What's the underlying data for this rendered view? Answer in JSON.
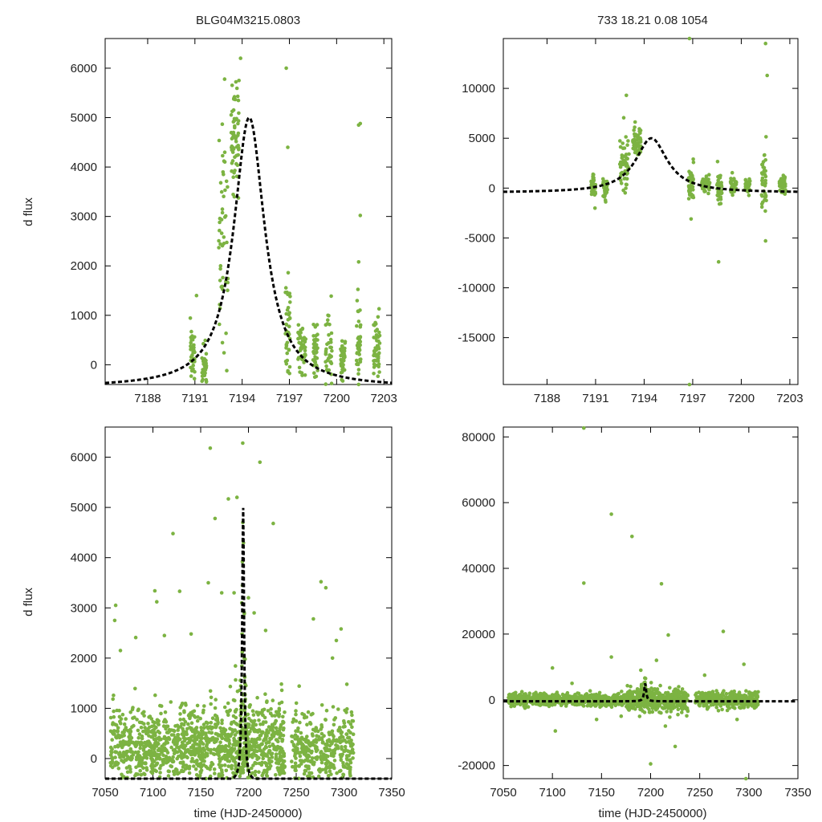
{
  "chart_data": [
    {
      "id": "top_left",
      "type": "scatter",
      "title": "BLG04M3215.0803",
      "xlabel": "",
      "ylabel": "d flux",
      "xlim": [
        7185.3,
        7203.5
      ],
      "ylim": [
        -400,
        6600
      ],
      "xticks": [
        7188,
        7191,
        7194,
        7197,
        7200,
        7203
      ],
      "yticks": [
        0,
        1000,
        2000,
        3000,
        4000,
        5000,
        6000
      ],
      "model": {
        "peak_time": 7194.45,
        "peak_flux": 5000,
        "baseline": -460,
        "width": 1.2
      },
      "point_color": "#7cb342",
      "model_color": "#000000",
      "clusters": [
        {
          "center": 7190.85,
          "spread": 0.15,
          "mean": 150,
          "sd": 280,
          "count": 40
        },
        {
          "center": 7191.6,
          "spread": 0.15,
          "mean": -100,
          "sd": 250,
          "count": 40
        },
        {
          "center": 7192.8,
          "spread": 0.3,
          "mean": 2500,
          "sd": 1400,
          "count": 50
        },
        {
          "center": 7193.55,
          "spread": 0.25,
          "mean": 4600,
          "sd": 600,
          "count": 60
        },
        {
          "center": 7196.9,
          "spread": 0.15,
          "mean": 700,
          "sd": 600,
          "count": 40
        },
        {
          "center": 7197.8,
          "spread": 0.25,
          "mean": 300,
          "sd": 300,
          "count": 50
        },
        {
          "center": 7198.65,
          "spread": 0.15,
          "mean": 350,
          "sd": 350,
          "count": 40
        },
        {
          "center": 7199.5,
          "spread": 0.2,
          "mean": 300,
          "sd": 400,
          "count": 40
        },
        {
          "center": 7200.4,
          "spread": 0.15,
          "mean": 100,
          "sd": 280,
          "count": 40
        },
        {
          "center": 7201.4,
          "spread": 0.15,
          "mean": 350,
          "sd": 500,
          "count": 40
        },
        {
          "center": 7202.55,
          "spread": 0.2,
          "mean": 300,
          "sd": 300,
          "count": 50
        }
      ],
      "outliers": [
        [
          7193.9,
          6200
        ],
        [
          7193.8,
          5750
        ],
        [
          7196.8,
          6000
        ],
        [
          7196.9,
          4400
        ],
        [
          7201.5,
          4880
        ],
        [
          7201.4,
          4850
        ],
        [
          7201.5,
          3020
        ],
        [
          7201.4,
          2080
        ],
        [
          7191.1,
          1400
        ]
      ]
    },
    {
      "id": "top_right",
      "type": "scatter",
      "title": "733  18.21  0.08  1054",
      "xlabel": "",
      "ylabel": "",
      "xlim": [
        7185.3,
        7203.5
      ],
      "ylim": [
        -19700,
        15000
      ],
      "xticks": [
        7188,
        7191,
        7194,
        7197,
        7200,
        7203
      ],
      "yticks": [
        -15000,
        -10000,
        -5000,
        0,
        5000,
        10000
      ],
      "model": {
        "peak_time": 7194.45,
        "peak_flux": 5000,
        "baseline": -460,
        "width": 1.2
      },
      "point_color": "#7cb342",
      "model_color": "#000000",
      "clusters": [
        {
          "center": 7190.85,
          "spread": 0.15,
          "mean": 0,
          "sd": 600,
          "count": 40
        },
        {
          "center": 7191.6,
          "spread": 0.15,
          "mean": -100,
          "sd": 500,
          "count": 40
        },
        {
          "center": 7192.8,
          "spread": 0.3,
          "mean": 2500,
          "sd": 1800,
          "count": 50
        },
        {
          "center": 7193.55,
          "spread": 0.25,
          "mean": 4600,
          "sd": 800,
          "count": 60
        },
        {
          "center": 7196.9,
          "spread": 0.15,
          "mean": 600,
          "sd": 900,
          "count": 40
        },
        {
          "center": 7197.8,
          "spread": 0.25,
          "mean": 300,
          "sd": 400,
          "count": 50
        },
        {
          "center": 7198.65,
          "spread": 0.15,
          "mean": 200,
          "sd": 900,
          "count": 40
        },
        {
          "center": 7199.5,
          "spread": 0.2,
          "mean": 300,
          "sd": 500,
          "count": 40
        },
        {
          "center": 7200.4,
          "spread": 0.15,
          "mean": 100,
          "sd": 400,
          "count": 40
        },
        {
          "center": 7201.4,
          "spread": 0.15,
          "mean": 200,
          "sd": 1600,
          "count": 40
        },
        {
          "center": 7202.55,
          "spread": 0.2,
          "mean": 300,
          "sd": 400,
          "count": 50
        }
      ],
      "outliers": [
        [
          7196.8,
          15000
        ],
        [
          7201.5,
          14500
        ],
        [
          7201.6,
          11300
        ],
        [
          7192.9,
          9300
        ],
        [
          7196.8,
          -19700
        ],
        [
          7198.6,
          -7400
        ],
        [
          7201.5,
          -5300
        ],
        [
          7196.9,
          -3100
        ]
      ]
    },
    {
      "id": "bottom_left",
      "type": "scatter",
      "title": "",
      "xlabel": "time (HJD-2450000)",
      "ylabel": "d flux",
      "xlim": [
        7050,
        7350
      ],
      "ylim": [
        -400,
        6600
      ],
      "xticks": [
        7050,
        7100,
        7150,
        7200,
        7250,
        7300,
        7350
      ],
      "yticks": [
        0,
        1000,
        2000,
        3000,
        4000,
        5000,
        6000
      ],
      "model": {
        "peak_time": 7194.45,
        "peak_flux": 5000,
        "baseline": -460,
        "width": 1.2
      },
      "point_color": "#7cb342",
      "model_color": "#000000",
      "clusters": [
        {
          "range": [
            7055,
            7175
          ],
          "mean": 250,
          "sd": 350,
          "count": 800
        },
        {
          "range": [
            7175,
            7238
          ],
          "mean": 250,
          "sd": 450,
          "count": 550
        },
        {
          "range": [
            7245,
            7310
          ],
          "mean": 180,
          "sd": 350,
          "count": 380
        }
      ],
      "outliers": [
        [
          7160,
          6180
        ],
        [
          7194,
          6280
        ],
        [
          7212,
          5900
        ],
        [
          7179,
          5170
        ],
        [
          7188,
          5200
        ],
        [
          7226,
          4680
        ],
        [
          7121,
          4480
        ],
        [
          7165,
          4780
        ],
        [
          7193,
          3100
        ],
        [
          7185,
          3300
        ],
        [
          7061,
          3050
        ],
        [
          7102,
          3340
        ],
        [
          7104,
          3120
        ],
        [
          7128,
          3330
        ],
        [
          7172,
          3300
        ],
        [
          7276,
          3520
        ],
        [
          7281,
          3400
        ],
        [
          7268,
          2780
        ],
        [
          7297,
          2580
        ],
        [
          7060,
          2750
        ],
        [
          7112,
          2450
        ],
        [
          7140,
          2480
        ],
        [
          7218,
          2550
        ],
        [
          7066,
          2150
        ],
        [
          7082,
          2410
        ],
        [
          7288,
          2000
        ],
        [
          7303,
          1480
        ],
        [
          7292,
          2350
        ],
        [
          7158,
          3500
        ],
        [
          7200,
          3200
        ],
        [
          7206,
          2900
        ]
      ]
    },
    {
      "id": "bottom_right",
      "type": "scatter",
      "title": "",
      "xlabel": "time (HJD-2450000)",
      "ylabel": "",
      "xlim": [
        7050,
        7350
      ],
      "ylim": [
        -24000,
        83000
      ],
      "xticks": [
        7050,
        7100,
        7150,
        7200,
        7250,
        7300,
        7350
      ],
      "yticks": [
        -20000,
        0,
        20000,
        40000,
        60000,
        80000
      ],
      "model": {
        "peak_time": 7194.45,
        "peak_flux": 5000,
        "baseline": -460,
        "width": 1.2
      },
      "point_color": "#7cb342",
      "model_color": "#000000",
      "clusters": [
        {
          "range": [
            7055,
            7175
          ],
          "mean": 0,
          "sd": 900,
          "count": 800
        },
        {
          "range": [
            7175,
            7238
          ],
          "mean": 0,
          "sd": 1600,
          "count": 550
        },
        {
          "range": [
            7245,
            7310
          ],
          "mean": 0,
          "sd": 1200,
          "count": 380
        }
      ],
      "outliers": [
        [
          7132,
          82700
        ],
        [
          7160,
          56500
        ],
        [
          7181,
          49700
        ],
        [
          7132,
          35500
        ],
        [
          7211,
          35300
        ],
        [
          7218,
          19700
        ],
        [
          7274,
          20800
        ],
        [
          7160,
          13000
        ],
        [
          7295,
          10800
        ],
        [
          7100,
          9700
        ],
        [
          7200,
          -19500
        ],
        [
          7225,
          -14200
        ],
        [
          7297,
          -24000
        ],
        [
          7103,
          -9500
        ],
        [
          7145,
          -6000
        ],
        [
          7190,
          9000
        ],
        [
          7206,
          12000
        ],
        [
          7215,
          -8000
        ],
        [
          7255,
          7500
        ],
        [
          7288,
          -6000
        ],
        [
          7170,
          -5000
        ],
        [
          7120,
          5000
        ]
      ]
    }
  ]
}
